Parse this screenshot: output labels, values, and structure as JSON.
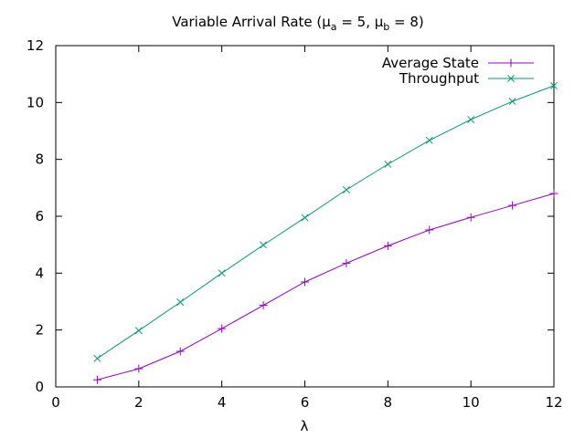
{
  "chart_data": {
    "type": "line",
    "title": {
      "prefix": "Variable Arrival Rate (",
      "mu": "μ",
      "sub_a": "a",
      "mid": " = 5, ",
      "sub_b": "b",
      "suffix": " = 8)"
    },
    "xlabel": "λ",
    "ylabel": "",
    "xlim": [
      0,
      12
    ],
    "ylim": [
      0,
      12
    ],
    "xticks": [
      "0",
      "2",
      "4",
      "6",
      "8",
      "10",
      "12"
    ],
    "yticks": [
      "0",
      "2",
      "4",
      "6",
      "8",
      "10",
      "12"
    ],
    "grid": false,
    "legend_position": "top-right",
    "x": [
      1,
      2,
      3,
      4,
      5,
      6,
      7,
      8,
      9,
      10,
      11,
      12
    ],
    "series": [
      {
        "name": "Average State",
        "marker": "plus",
        "color": "#9400d3",
        "values": [
          0.25,
          0.64,
          1.25,
          2.05,
          2.87,
          3.69,
          4.35,
          4.96,
          5.52,
          5.96,
          6.38,
          6.8
        ]
      },
      {
        "name": "Throughput",
        "marker": "x",
        "color": "#009e73",
        "values": [
          1.0,
          1.98,
          2.98,
          4.0,
          4.99,
          5.95,
          6.93,
          7.83,
          8.67,
          9.4,
          10.04,
          10.59
        ]
      }
    ]
  }
}
